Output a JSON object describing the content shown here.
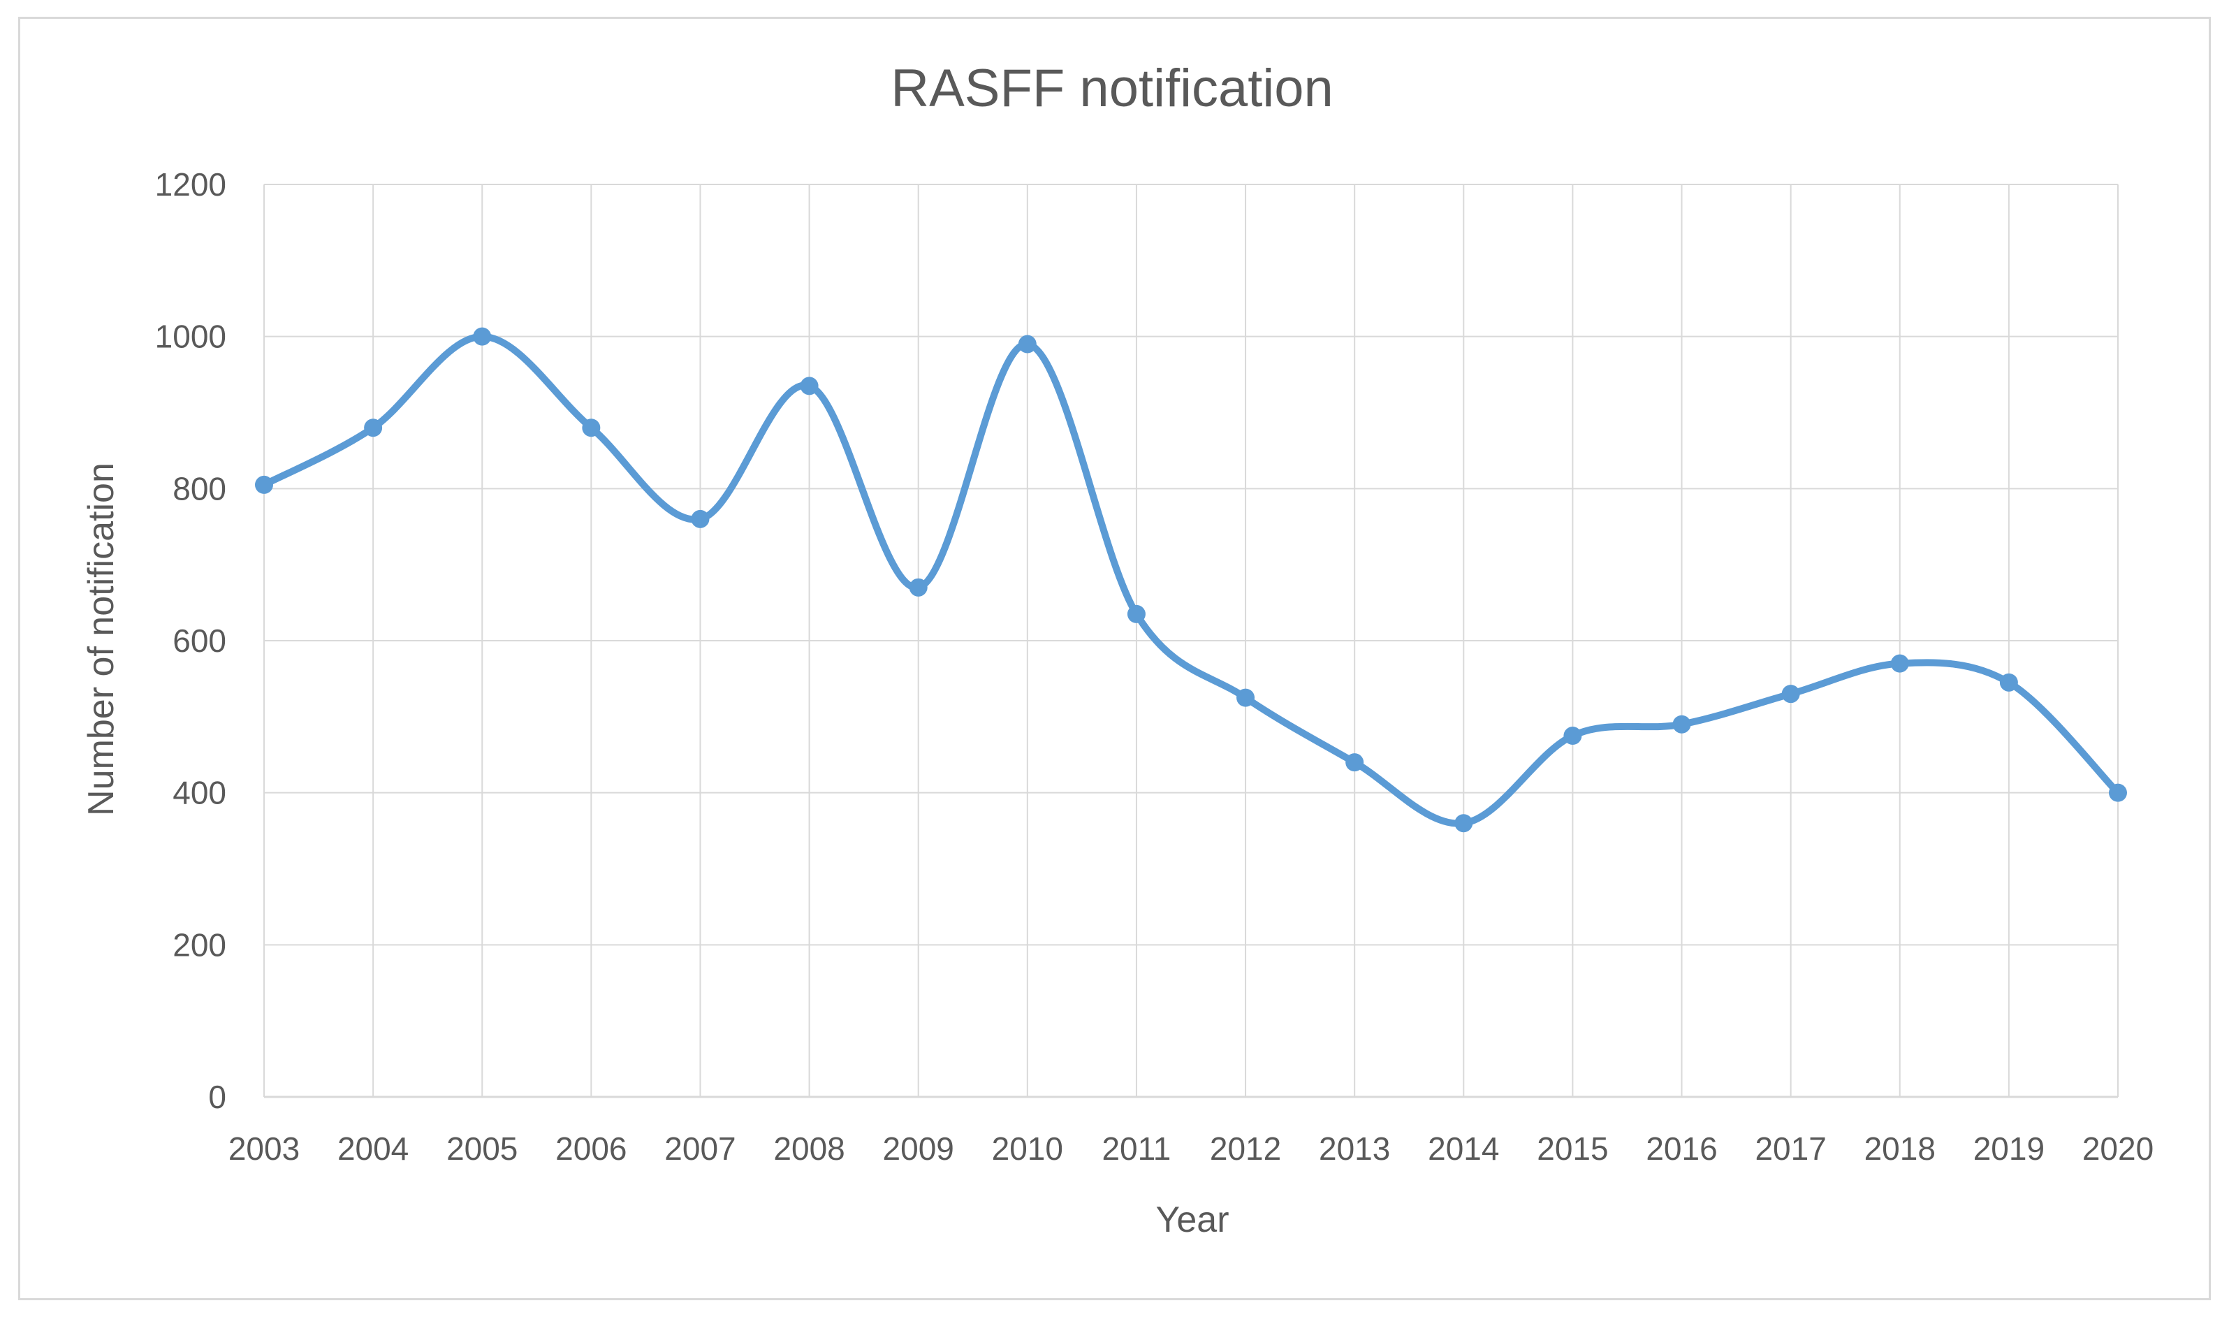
{
  "chart_data": {
    "type": "line",
    "title": "RASFF notification",
    "xlabel": "Year",
    "ylabel": "Number of notification",
    "categories": [
      "2003",
      "2004",
      "2005",
      "2006",
      "2007",
      "2008",
      "2009",
      "2010",
      "2011",
      "2012",
      "2013",
      "2014",
      "2015",
      "2016",
      "2017",
      "2018",
      "2019",
      "2020"
    ],
    "series": [
      {
        "values": [
          805,
          880,
          1000,
          880,
          760,
          935,
          670,
          990,
          635,
          525,
          440,
          360,
          475,
          490,
          530,
          570,
          545,
          400
        ],
        "color": "#5b9bd5"
      }
    ],
    "ylim": [
      0,
      1200
    ],
    "yticks": [
      0,
      200,
      400,
      600,
      800,
      1000,
      1200
    ],
    "smooth": true,
    "markers": true,
    "grid": "both",
    "legend": "none",
    "colors": {
      "line": "#5b9bd5",
      "grid": "#d9d9d9",
      "text": "#595959",
      "frame": "#d9d9d9"
    }
  }
}
